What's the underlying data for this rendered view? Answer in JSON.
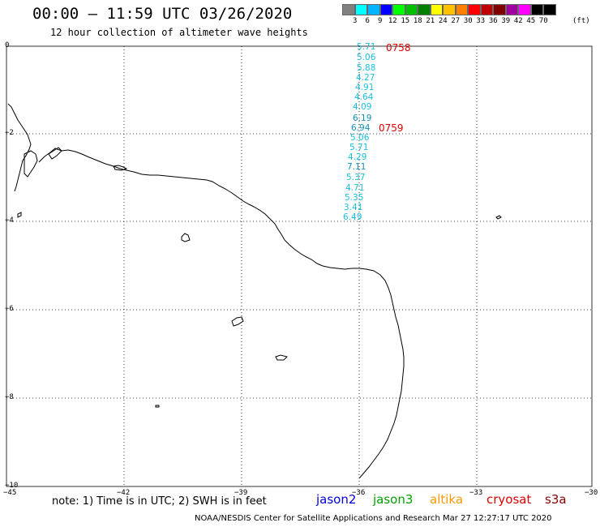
{
  "title": "00:00 – 11:59 UTC 03/26/2020",
  "subtitle": "12 hour collection of altimeter wave heights",
  "scale": {
    "labels": [
      "3",
      "6",
      "9",
      "12",
      "15",
      "18",
      "21",
      "24",
      "27",
      "30",
      "33",
      "36",
      "39",
      "42",
      "45",
      "70"
    ],
    "unit": "(ft)",
    "colors": [
      "#808080",
      "#00ffff",
      "#00b4ff",
      "#0000ff",
      "#00ff00",
      "#00c000",
      "#008000",
      "#ffff00",
      "#ffc000",
      "#ff8000",
      "#ff0000",
      "#c00000",
      "#800000",
      "#a000a0",
      "#ff00ff",
      "#000000",
      "#000000"
    ]
  },
  "axes": {
    "y_labels": [
      "0",
      "−2",
      "−4",
      "−6",
      "−8",
      "−10"
    ],
    "x_labels": [
      "−45",
      "−42",
      "−39",
      "−36",
      "−33",
      "−30"
    ]
  },
  "observations": {
    "waves": [
      "5.71",
      "5.06",
      "5.88",
      "4.27",
      "4.91",
      "4.64",
      "4.09",
      "6.19",
      "6.94",
      "5.06",
      "5.71",
      "4.29",
      "7.11",
      "5.37",
      "4.71",
      "5.35",
      "3.41",
      "6.49"
    ],
    "pass_labels": [
      "0758",
      "0759"
    ]
  },
  "note": "note:  1) Time is in UTC;  2) SWH is in feet",
  "satellites": [
    {
      "name": "jason2",
      "color": "#0000dd"
    },
    {
      "name": "jason3",
      "color": "#00a000"
    },
    {
      "name": "altika",
      "color": "#ff9900"
    },
    {
      "name": "cryosat",
      "color": "#dd0000"
    },
    {
      "name": "s3a",
      "color": "#880000"
    }
  ],
  "footer": "NOAA/NESDIS Center for Satellite Applications and Research    Mar 27 12:27:17 UTC 2020"
}
